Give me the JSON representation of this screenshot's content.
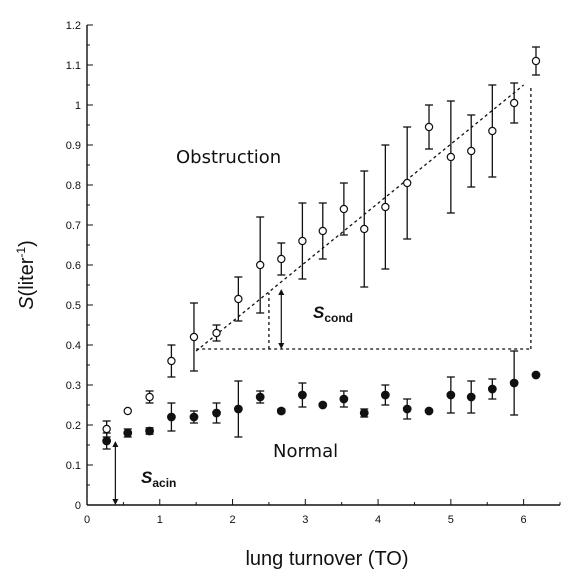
{
  "chart_data": {
    "type": "scatter",
    "xlabel": "lung turnover (TO)",
    "ylabel_main": "S",
    "ylabel_unit": "(liter",
    "ylabel_exp": "-1",
    "ylabel_close": ")",
    "xlim": [
      0,
      6.5
    ],
    "ylim": [
      0,
      1.2
    ],
    "x_ticks": [
      0,
      1,
      2,
      3,
      4,
      5,
      6
    ],
    "y_ticks": [
      0,
      0.1,
      0.2,
      0.3,
      0.4,
      0.5,
      0.6,
      0.7,
      0.8,
      0.9,
      1,
      1.1,
      1.2
    ],
    "y_tick_labels": [
      "0",
      "0.1",
      "0.2",
      "0.3",
      "0.4",
      "0.5",
      "0.6",
      "0.7",
      "0.8",
      "0.9",
      "1",
      "1.1",
      "1.2"
    ],
    "grid": false,
    "series": [
      {
        "name": "Obstruction",
        "marker": "open-circle",
        "points": [
          {
            "x": 0.27,
            "y": 0.19,
            "err": 0.02
          },
          {
            "x": 0.56,
            "y": 0.235,
            "err": 0
          },
          {
            "x": 0.86,
            "y": 0.27,
            "err": 0.015
          },
          {
            "x": 1.16,
            "y": 0.36,
            "err": 0.04
          },
          {
            "x": 1.47,
            "y": 0.42,
            "err": 0.085
          },
          {
            "x": 1.78,
            "y": 0.43,
            "err": 0.02
          },
          {
            "x": 2.08,
            "y": 0.515,
            "err": 0.055
          },
          {
            "x": 2.38,
            "y": 0.6,
            "err": 0.12
          },
          {
            "x": 2.67,
            "y": 0.615,
            "err": 0.04
          },
          {
            "x": 2.96,
            "y": 0.66,
            "err": 0.095
          },
          {
            "x": 3.24,
            "y": 0.685,
            "err": 0.07
          },
          {
            "x": 3.53,
            "y": 0.74,
            "err": 0.065
          },
          {
            "x": 3.81,
            "y": 0.69,
            "err": 0.145
          },
          {
            "x": 4.1,
            "y": 0.745,
            "err": 0.155
          },
          {
            "x": 4.4,
            "y": 0.805,
            "err": 0.14
          },
          {
            "x": 4.7,
            "y": 0.945,
            "err": 0.055
          },
          {
            "x": 5.0,
            "y": 0.87,
            "err": 0.14
          },
          {
            "x": 5.28,
            "y": 0.885,
            "err": 0.09
          },
          {
            "x": 5.57,
            "y": 0.935,
            "err": 0.115
          },
          {
            "x": 5.87,
            "y": 1.005,
            "err": 0.05
          },
          {
            "x": 6.17,
            "y": 1.11,
            "err": 0.035
          }
        ]
      },
      {
        "name": "Normal",
        "marker": "filled-circle",
        "points": [
          {
            "x": 0.27,
            "y": 0.16,
            "err": 0.02
          },
          {
            "x": 0.56,
            "y": 0.18,
            "err": 0.01
          },
          {
            "x": 0.86,
            "y": 0.185,
            "err": 0.008
          },
          {
            "x": 1.16,
            "y": 0.22,
            "err": 0.035
          },
          {
            "x": 1.47,
            "y": 0.22,
            "err": 0.015
          },
          {
            "x": 1.78,
            "y": 0.23,
            "err": 0.025
          },
          {
            "x": 2.08,
            "y": 0.24,
            "err": 0.07
          },
          {
            "x": 2.38,
            "y": 0.27,
            "err": 0.015
          },
          {
            "x": 2.67,
            "y": 0.235,
            "err": 0.005
          },
          {
            "x": 2.96,
            "y": 0.275,
            "err": 0.03
          },
          {
            "x": 3.24,
            "y": 0.25,
            "err": 0
          },
          {
            "x": 3.53,
            "y": 0.265,
            "err": 0.02
          },
          {
            "x": 3.81,
            "y": 0.23,
            "err": 0.01
          },
          {
            "x": 4.1,
            "y": 0.275,
            "err": 0.025
          },
          {
            "x": 4.4,
            "y": 0.24,
            "err": 0.025
          },
          {
            "x": 4.7,
            "y": 0.235,
            "err": 0
          },
          {
            "x": 5.0,
            "y": 0.275,
            "err": 0.045
          },
          {
            "x": 5.28,
            "y": 0.27,
            "err": 0.04
          },
          {
            "x": 5.57,
            "y": 0.29,
            "err": 0.025
          },
          {
            "x": 5.87,
            "y": 0.305,
            "err": 0.08
          },
          {
            "x": 6.17,
            "y": 0.325,
            "err": 0
          }
        ]
      }
    ],
    "annotations": {
      "obstruction_label": "Obstruction",
      "normal_label": "Normal",
      "scond_main": "S",
      "scond_sub": "cond",
      "sacin_main": "S",
      "sacin_sub": "acin"
    },
    "guides": {
      "fit_line": {
        "x1": 1.5,
        "y1": 0.385,
        "x2": 6.0,
        "y2": 1.05
      },
      "baseline_y": 0.39,
      "baseline_x1": 1.5,
      "baseline_x2": 6.1,
      "vertical_right_x": 6.1,
      "vertical_right_y_top": 1.05,
      "vertical_mid_x": 2.5,
      "vertical_mid_y_top": 0.53,
      "scond_arrow_x": 2.67,
      "scond_arrow_y1": 0.39,
      "scond_arrow_y2": 0.54,
      "sacin_arrow_x": 0.39,
      "sacin_arrow_y1": 0.0,
      "sacin_arrow_y2": 0.16
    }
  }
}
